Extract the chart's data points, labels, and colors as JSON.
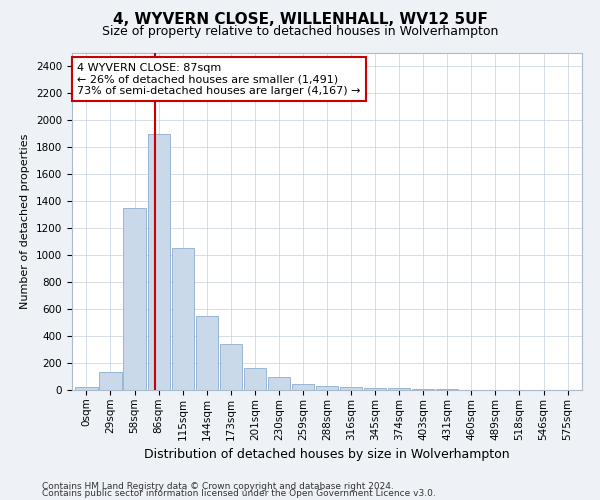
{
  "title1": "4, WYVERN CLOSE, WILLENHALL, WV12 5UF",
  "title2": "Size of property relative to detached houses in Wolverhampton",
  "xlabel": "Distribution of detached houses by size in Wolverhampton",
  "ylabel": "Number of detached properties",
  "footer1": "Contains HM Land Registry data © Crown copyright and database right 2024.",
  "footer2": "Contains public sector information licensed under the Open Government Licence v3.0.",
  "annotation_title": "4 WYVERN CLOSE: 87sqm",
  "annotation_line1": "← 26% of detached houses are smaller (1,491)",
  "annotation_line2": "73% of semi-detached houses are larger (4,167) →",
  "bar_color": "#c9d9ea",
  "bar_edge_color": "#7ba3c8",
  "vline_color": "#cc0000",
  "vline_x_index": 2.87,
  "annotation_box_facecolor": "#ffffff",
  "annotation_box_edgecolor": "#cc0000",
  "categories": [
    "0sqm",
    "29sqm",
    "58sqm",
    "86sqm",
    "115sqm",
    "144sqm",
    "173sqm",
    "201sqm",
    "230sqm",
    "259sqm",
    "288sqm",
    "316sqm",
    "345sqm",
    "374sqm",
    "403sqm",
    "431sqm",
    "460sqm",
    "489sqm",
    "518sqm",
    "546sqm",
    "575sqm"
  ],
  "values": [
    25,
    130,
    1350,
    1900,
    1050,
    545,
    340,
    165,
    100,
    48,
    28,
    22,
    18,
    12,
    8,
    5,
    3,
    2,
    1,
    1,
    1
  ],
  "ylim": [
    0,
    2500
  ],
  "yticks": [
    0,
    200,
    400,
    600,
    800,
    1000,
    1200,
    1400,
    1600,
    1800,
    2000,
    2200,
    2400
  ],
  "background_color": "#eef2f7",
  "plot_bg_color": "#ffffff",
  "grid_color": "#c5d0dc",
  "title1_fontsize": 11,
  "title2_fontsize": 9,
  "xlabel_fontsize": 9,
  "ylabel_fontsize": 8,
  "tick_fontsize": 7.5,
  "annotation_fontsize": 8,
  "footer_fontsize": 6.5
}
